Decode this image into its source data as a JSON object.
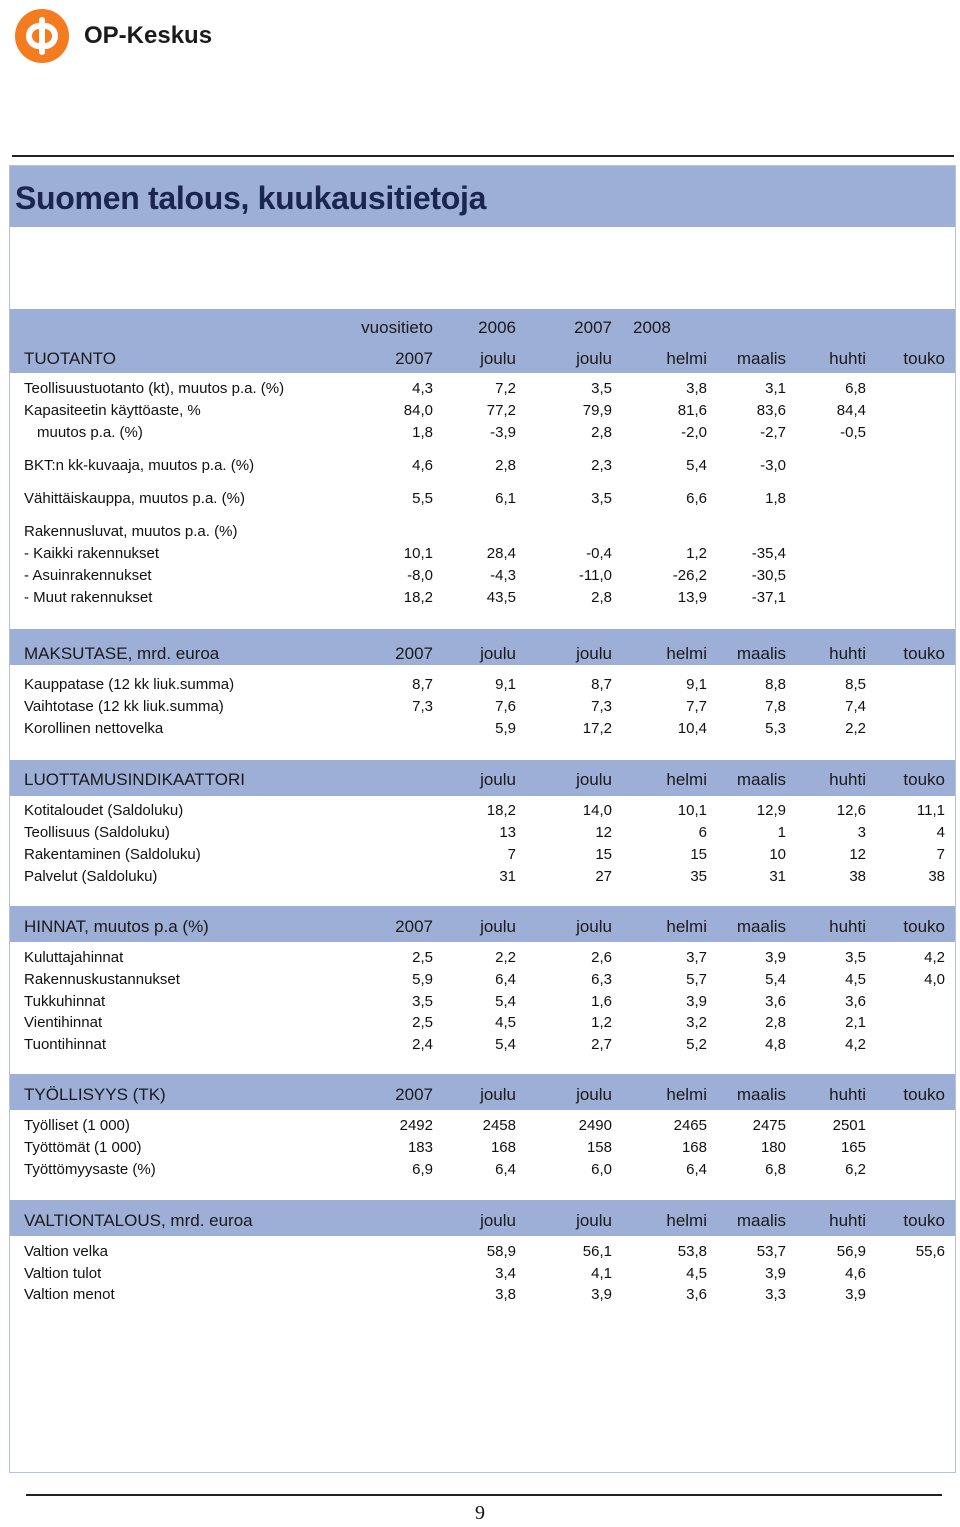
{
  "brand": {
    "name": "OP-Keskus",
    "logo_icon": "op-logo-icon",
    "logo_color": "#f47b20"
  },
  "title": "Suomen talous, kuukausitietoja",
  "header_top": [
    "vuositieto",
    "2006",
    "2007",
    "2008"
  ],
  "sections": [
    {
      "id": "tuotanto",
      "heading": "TUOTANTO",
      "columns": [
        "2007",
        "joulu",
        "joulu",
        "helmi",
        "maalis",
        "huhti",
        "touko"
      ],
      "rows": [
        {
          "label": "Teollisuustuotanto (kt), muutos p.a. (%)",
          "values": [
            "4,3",
            "7,2",
            "3,5",
            "3,8",
            "3,1",
            "6,8",
            ""
          ]
        },
        {
          "label": "Kapasiteetin käyttöaste, %",
          "values": [
            "84,0",
            "77,2",
            "79,9",
            "81,6",
            "83,6",
            "84,4",
            ""
          ]
        },
        {
          "label": "muutos p.a. (%)",
          "indent": true,
          "values": [
            "1,8",
            "-3,9",
            "2,8",
            "-2,0",
            "-2,7",
            "-0,5",
            ""
          ]
        },
        {
          "label": "BKT:n kk-kuvaaja, muutos p.a. (%)",
          "values": [
            "4,6",
            "2,8",
            "2,3",
            "5,4",
            "-3,0",
            "",
            ""
          ]
        },
        {
          "label": "Vähittäiskauppa, muutos p.a. (%)",
          "values": [
            "5,5",
            "6,1",
            "3,5",
            "6,6",
            "1,8",
            "",
            ""
          ]
        },
        {
          "label": "Rakennusluvat, muutos p.a. (%)",
          "values": [
            "",
            "",
            "",
            "",
            "",
            "",
            ""
          ]
        },
        {
          "label": "- Kaikki rakennukset",
          "values": [
            "10,1",
            "28,4",
            "-0,4",
            "1,2",
            "-35,4",
            "",
            ""
          ]
        },
        {
          "label": "- Asuinrakennukset",
          "values": [
            "-8,0",
            "-4,3",
            "-11,0",
            "-26,2",
            "-30,5",
            "",
            ""
          ]
        },
        {
          "label": "- Muut rakennukset",
          "values": [
            "18,2",
            "43,5",
            "2,8",
            "13,9",
            "-37,1",
            "",
            ""
          ]
        }
      ]
    },
    {
      "id": "maksutase",
      "heading": "MAKSUTASE, mrd. euroa",
      "columns": [
        "2007",
        "joulu",
        "joulu",
        "helmi",
        "maalis",
        "huhti",
        "touko"
      ],
      "rows": [
        {
          "label": "Kauppatase (12 kk liuk.summa)",
          "values": [
            "8,7",
            "9,1",
            "8,7",
            "9,1",
            "8,8",
            "8,5",
            ""
          ]
        },
        {
          "label": "Vaihtotase (12 kk liuk.summa)",
          "values": [
            "7,3",
            "7,6",
            "7,3",
            "7,7",
            "7,8",
            "7,4",
            ""
          ]
        },
        {
          "label": "Korollinen nettovelka",
          "values": [
            "",
            "5,9",
            "17,2",
            "10,4",
            "5,3",
            "2,2",
            ""
          ]
        }
      ]
    },
    {
      "id": "luottamus",
      "heading": "LUOTTAMUSINDIKAATTORI",
      "columns": [
        "",
        "joulu",
        "joulu",
        "helmi",
        "maalis",
        "huhti",
        "touko"
      ],
      "rows": [
        {
          "label": "Kotitaloudet (Saldoluku)",
          "values": [
            "",
            "18,2",
            "14,0",
            "10,1",
            "12,9",
            "12,6",
            "11,1"
          ]
        },
        {
          "label": "Teollisuus (Saldoluku)",
          "values": [
            "",
            "13",
            "12",
            "6",
            "1",
            "3",
            "4"
          ]
        },
        {
          "label": "Rakentaminen (Saldoluku)",
          "values": [
            "",
            "7",
            "15",
            "15",
            "10",
            "12",
            "7"
          ]
        },
        {
          "label": "Palvelut (Saldoluku)",
          "values": [
            "",
            "31",
            "27",
            "35",
            "31",
            "38",
            "38"
          ]
        }
      ]
    },
    {
      "id": "hinnat",
      "heading": "HINNAT, muutos p.a (%)",
      "columns": [
        "2007",
        "joulu",
        "joulu",
        "helmi",
        "maalis",
        "huhti",
        "touko"
      ],
      "rows": [
        {
          "label": "Kuluttajahinnat",
          "values": [
            "2,5",
            "2,2",
            "2,6",
            "3,7",
            "3,9",
            "3,5",
            "4,2"
          ]
        },
        {
          "label": "Rakennuskustannukset",
          "values": [
            "5,9",
            "6,4",
            "6,3",
            "5,7",
            "5,4",
            "4,5",
            "4,0"
          ]
        },
        {
          "label": "Tukkuhinnat",
          "values": [
            "3,5",
            "5,4",
            "1,6",
            "3,9",
            "3,6",
            "3,6",
            ""
          ]
        },
        {
          "label": "Vientihinnat",
          "values": [
            "2,5",
            "4,5",
            "1,2",
            "3,2",
            "2,8",
            "2,1",
            ""
          ]
        },
        {
          "label": "Tuontihinnat",
          "values": [
            "2,4",
            "5,4",
            "2,7",
            "5,2",
            "4,8",
            "4,2",
            ""
          ]
        }
      ]
    },
    {
      "id": "tyollisyys",
      "heading": "TYÖLLISYYS (TK)",
      "columns": [
        "2007",
        "joulu",
        "joulu",
        "helmi",
        "maalis",
        "huhti",
        "touko"
      ],
      "rows": [
        {
          "label": "Työlliset (1 000)",
          "values": [
            "2492",
            "2458",
            "2490",
            "2465",
            "2475",
            "2501",
            ""
          ]
        },
        {
          "label": "Työttömät (1 000)",
          "values": [
            "183",
            "168",
            "158",
            "168",
            "180",
            "165",
            ""
          ]
        },
        {
          "label": "Työttömyysaste (%)",
          "values": [
            "6,9",
            "6,4",
            "6,0",
            "6,4",
            "6,8",
            "6,2",
            ""
          ]
        }
      ]
    },
    {
      "id": "valtiontalous",
      "heading": "VALTIONTALOUS, mrd. euroa",
      "columns": [
        "",
        "joulu",
        "joulu",
        "helmi",
        "maalis",
        "huhti",
        "touko"
      ],
      "rows": [
        {
          "label": "Valtion velka",
          "values": [
            "",
            "58,9",
            "56,1",
            "53,8",
            "53,7",
            "56,9",
            "55,6"
          ]
        },
        {
          "label": "Valtion tulot",
          "values": [
            "",
            "3,4",
            "4,1",
            "4,5",
            "3,9",
            "4,6",
            ""
          ]
        },
        {
          "label": "Valtion menot",
          "values": [
            "",
            "3,8",
            "3,9",
            "3,6",
            "3,3",
            "3,9",
            ""
          ]
        }
      ]
    }
  ],
  "page_number": "9"
}
